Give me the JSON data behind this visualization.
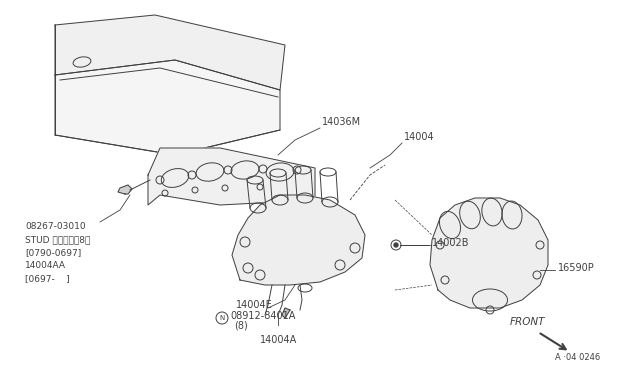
{
  "bg_color": "#ffffff",
  "line_color": "#404040",
  "fig_width": 6.4,
  "fig_height": 3.72,
  "diagram_ref": "A ·04 0246",
  "callout_lines": [
    "08267-03010",
    "STUD スタッド（8）",
    "[0790-0697]",
    "14004AA",
    "[0697-    ]"
  ]
}
